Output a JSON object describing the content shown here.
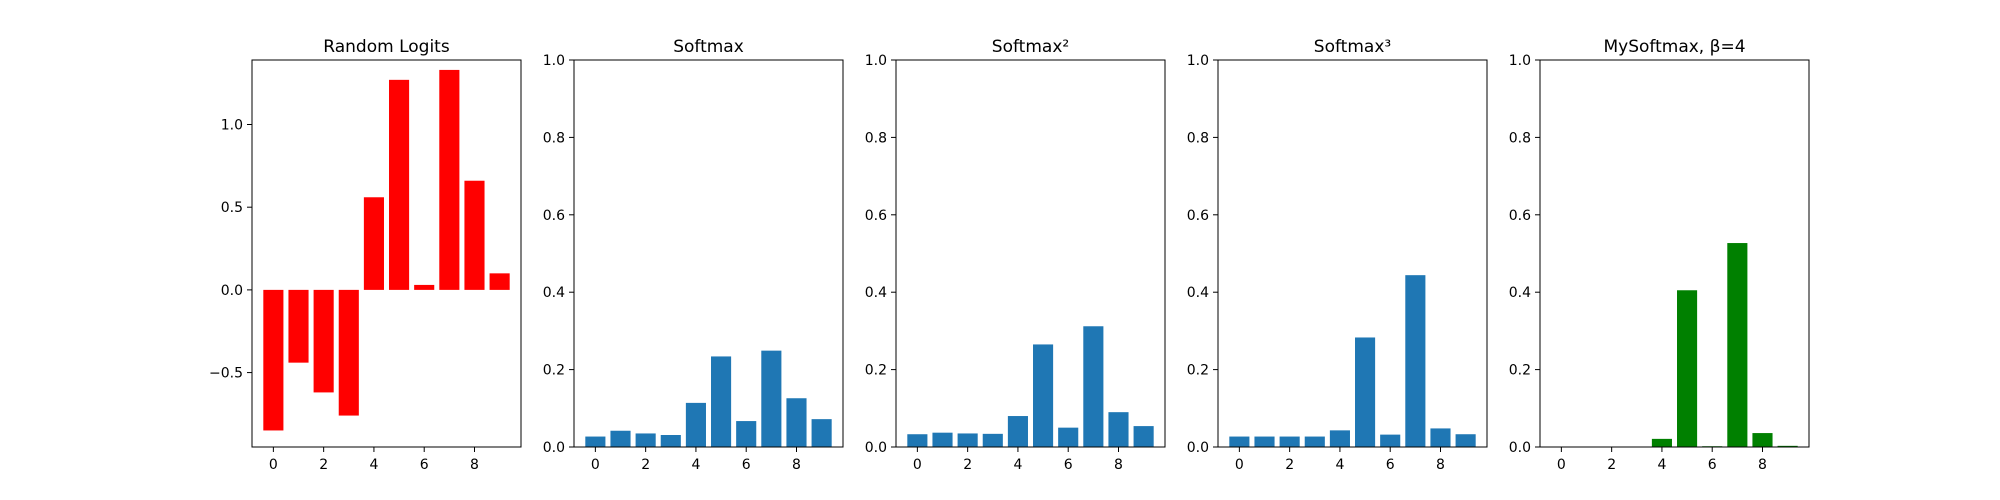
{
  "chart_data": [
    {
      "type": "bar",
      "title": "Random Logits",
      "xlabel": "",
      "ylabel": "",
      "categories": [
        0,
        1,
        2,
        3,
        4,
        5,
        6,
        7,
        8,
        9
      ],
      "values": [
        -0.85,
        -0.44,
        -0.62,
        -0.76,
        0.56,
        1.27,
        0.03,
        1.33,
        0.66,
        0.1
      ],
      "ylim": [
        -0.95,
        1.39
      ],
      "yticks": [
        -0.5,
        0.0,
        0.5,
        1.0
      ],
      "yticklabels": [
        "−0.5",
        "0.0",
        "0.5",
        "1.0"
      ],
      "xticks": [
        0,
        2,
        4,
        6,
        8
      ],
      "xticklabels": [
        "0",
        "2",
        "4",
        "6",
        "8"
      ],
      "bar_color": "#ff0000",
      "grid": false
    },
    {
      "type": "bar",
      "title": "Softmax",
      "xlabel": "",
      "ylabel": "",
      "categories": [
        0,
        1,
        2,
        3,
        4,
        5,
        6,
        7,
        8,
        9
      ],
      "values": [
        0.027,
        0.042,
        0.035,
        0.031,
        0.114,
        0.234,
        0.067,
        0.249,
        0.126,
        0.072
      ],
      "ylim": [
        0,
        1.0
      ],
      "yticks": [
        0.0,
        0.2,
        0.4,
        0.6,
        0.8,
        1.0
      ],
      "yticklabels": [
        "0.0",
        "0.2",
        "0.4",
        "0.6",
        "0.8",
        "1.0"
      ],
      "xticks": [
        0,
        2,
        4,
        6,
        8
      ],
      "xticklabels": [
        "0",
        "2",
        "4",
        "6",
        "8"
      ],
      "bar_color": "#1f77b4",
      "grid": false
    },
    {
      "type": "bar",
      "title": "Softmax²",
      "xlabel": "",
      "ylabel": "",
      "categories": [
        0,
        1,
        2,
        3,
        4,
        5,
        6,
        7,
        8,
        9
      ],
      "values": [
        0.033,
        0.037,
        0.035,
        0.034,
        0.08,
        0.265,
        0.05,
        0.312,
        0.09,
        0.054
      ],
      "ylim": [
        0,
        1.0
      ],
      "yticks": [
        0.0,
        0.2,
        0.4,
        0.6,
        0.8,
        1.0
      ],
      "yticklabels": [
        "0.0",
        "0.2",
        "0.4",
        "0.6",
        "0.8",
        "1.0"
      ],
      "xticks": [
        0,
        2,
        4,
        6,
        8
      ],
      "xticklabels": [
        "0",
        "2",
        "4",
        "6",
        "8"
      ],
      "bar_color": "#1f77b4",
      "grid": false
    },
    {
      "type": "bar",
      "title": "Softmax³",
      "xlabel": "",
      "ylabel": "",
      "categories": [
        0,
        1,
        2,
        3,
        4,
        5,
        6,
        7,
        8,
        9
      ],
      "values": [
        0.027,
        0.027,
        0.027,
        0.027,
        0.043,
        0.283,
        0.032,
        0.444,
        0.048,
        0.033
      ],
      "ylim": [
        0,
        1.0
      ],
      "yticks": [
        0.0,
        0.2,
        0.4,
        0.6,
        0.8,
        1.0
      ],
      "yticklabels": [
        "0.0",
        "0.2",
        "0.4",
        "0.6",
        "0.8",
        "1.0"
      ],
      "xticks": [
        0,
        2,
        4,
        6,
        8
      ],
      "xticklabels": [
        "0",
        "2",
        "4",
        "6",
        "8"
      ],
      "bar_color": "#1f77b4",
      "grid": false
    },
    {
      "type": "bar",
      "title": "MySoftmax, β=4",
      "xlabel": "",
      "ylabel": "",
      "categories": [
        0,
        1,
        2,
        3,
        4,
        5,
        6,
        7,
        8,
        9
      ],
      "values": [
        0.0,
        0.0,
        0.0,
        0.0,
        0.021,
        0.405,
        0.002,
        0.527,
        0.036,
        0.003
      ],
      "ylim": [
        0,
        1.0
      ],
      "yticks": [
        0.0,
        0.2,
        0.4,
        0.6,
        0.8,
        1.0
      ],
      "yticklabels": [
        "0.0",
        "0.2",
        "0.4",
        "0.6",
        "0.8",
        "1.0"
      ],
      "xticks": [
        0,
        2,
        4,
        6,
        8
      ],
      "xticklabels": [
        "0",
        "2",
        "4",
        "6",
        "8"
      ],
      "bar_color": "#008000",
      "grid": false
    }
  ]
}
